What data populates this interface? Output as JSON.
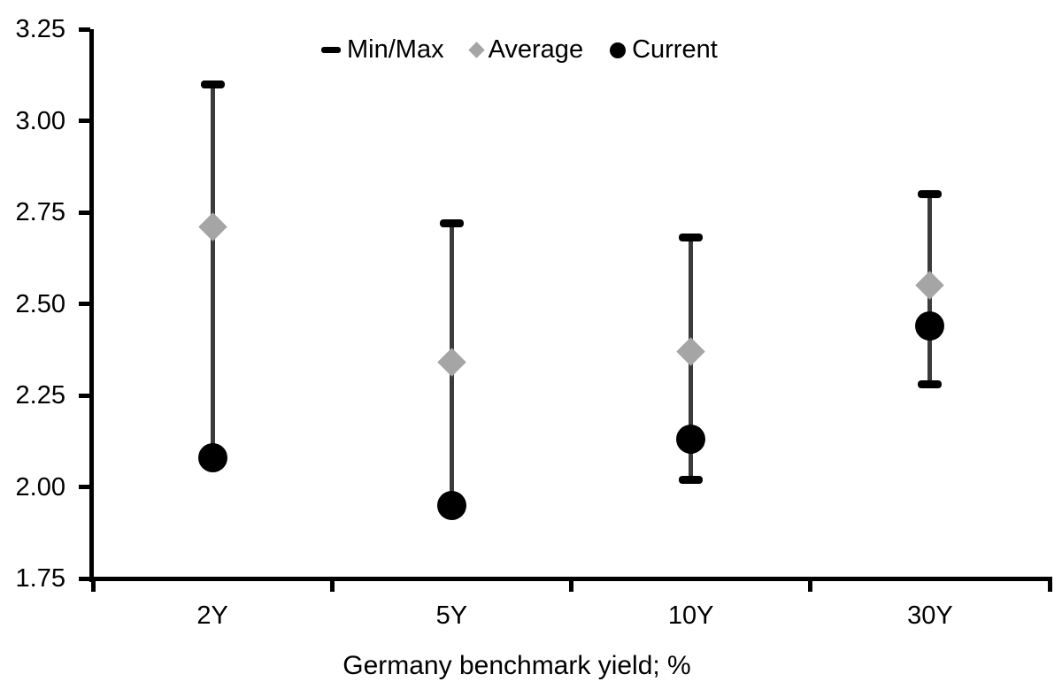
{
  "chart_data": {
    "type": "scatter",
    "title": "",
    "xlabel": "Germany benchmark yield; %",
    "ylabel": "",
    "categories": [
      "2Y",
      "5Y",
      "10Y",
      "30Y"
    ],
    "ylim": [
      1.75,
      3.25
    ],
    "y_tick_labels": [
      "3.25",
      "3.00",
      "2.75",
      "2.50",
      "2.25",
      "2.00",
      "1.75"
    ],
    "y_tick_values": [
      3.25,
      3.0,
      2.75,
      2.5,
      2.25,
      2.0,
      1.75
    ],
    "grid": false,
    "legend_position": "top-center",
    "legend": [
      {
        "label": "Min/Max",
        "marker": "dash-icon",
        "color": "#000000"
      },
      {
        "label": "Average",
        "marker": "diamond-icon",
        "color": "#a5a5a5"
      },
      {
        "label": "Current",
        "marker": "circle-icon",
        "color": "#000000"
      }
    ],
    "series": [
      {
        "name": "Min/Max",
        "type": "range",
        "min": [
          2.08,
          1.95,
          2.02,
          2.28
        ],
        "max": [
          3.1,
          2.72,
          2.68,
          2.8
        ],
        "min_cap_visible": [
          false,
          false,
          true,
          true
        ]
      },
      {
        "name": "Average",
        "type": "point",
        "marker": "diamond",
        "values": [
          2.71,
          2.34,
          2.37,
          2.55
        ]
      },
      {
        "name": "Current",
        "type": "point",
        "marker": "circle",
        "values": [
          2.08,
          1.95,
          2.13,
          2.44
        ]
      }
    ],
    "colors": {
      "axis": "#000000",
      "text": "#000000",
      "range_line": "#3b3b3b",
      "cap": "#000000",
      "average": "#a5a5a5",
      "current": "#000000",
      "background": "#ffffff"
    }
  }
}
